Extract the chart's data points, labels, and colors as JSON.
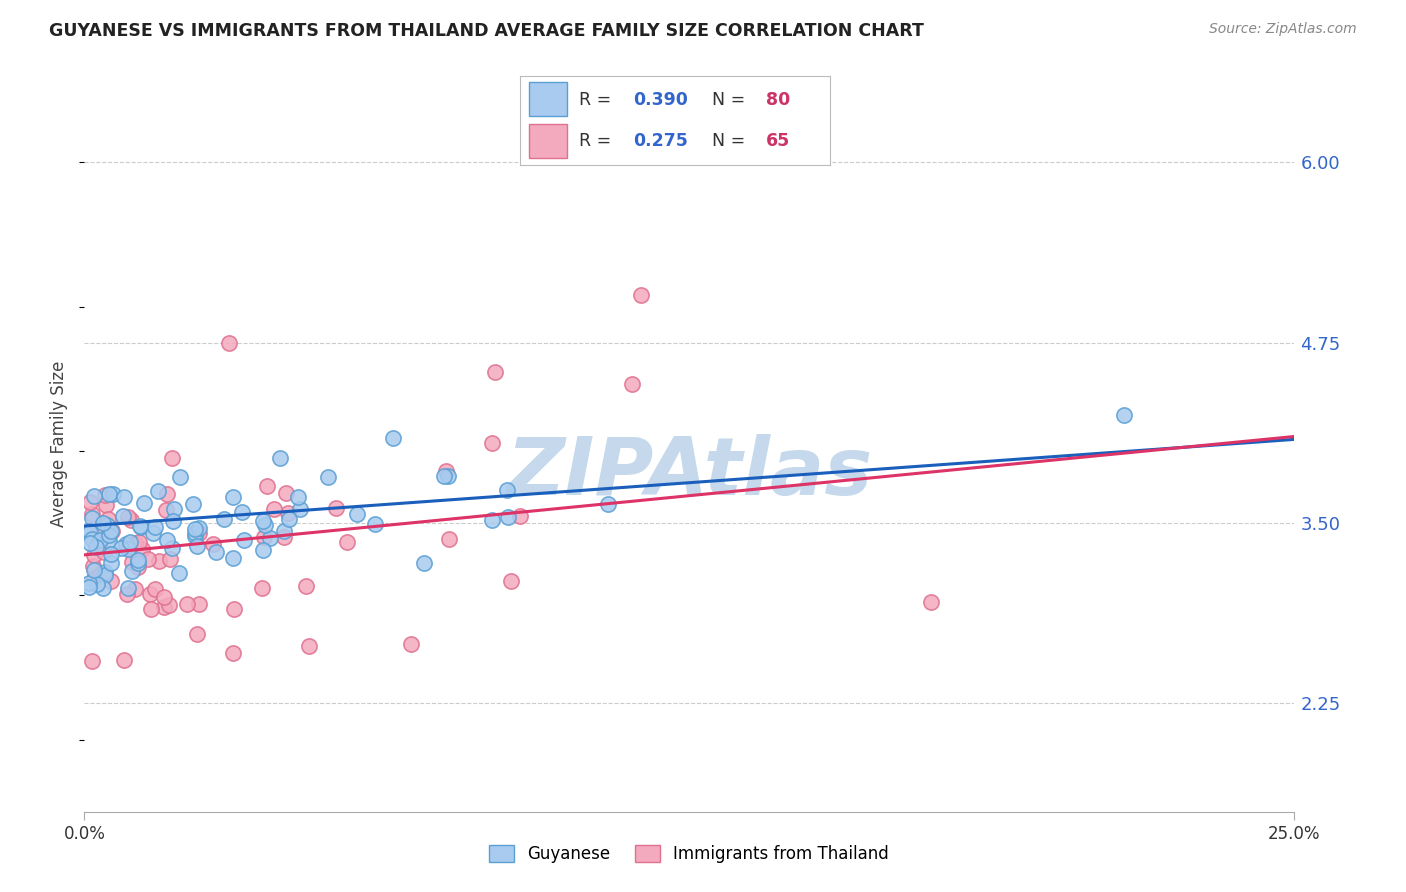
{
  "title": "GUYANESE VS IMMIGRANTS FROM THAILAND AVERAGE FAMILY SIZE CORRELATION CHART",
  "source": "Source: ZipAtlas.com",
  "ylabel": "Average Family Size",
  "xlim": [
    0.0,
    0.25
  ],
  "ylim": [
    1.5,
    6.6
  ],
  "yticks": [
    2.25,
    3.5,
    4.75,
    6.0
  ],
  "xticks_pos": [
    0.0,
    0.25
  ],
  "xticklabels": [
    "0.0%",
    "25.0%"
  ],
  "series1": {
    "label": "Guyanese",
    "R": 0.39,
    "N": 80,
    "color": "#A8CBEF",
    "edge_color": "#5A9FD4"
  },
  "series2": {
    "label": "Immigrants from Thailand",
    "R": 0.275,
    "N": 65,
    "color": "#F4AABE",
    "edge_color": "#E07090"
  },
  "trend1_color": "#1A5FBB",
  "trend2_color": "#DD3366",
  "watermark": "ZIPAtlas",
  "watermark_color": "#C5D8EC",
  "background_color": "#FFFFFF",
  "grid_color": "#CCCCCC",
  "title_color": "#222222",
  "axis_label_color": "#444444",
  "right_tick_color": "#3366CC",
  "legend_R_color": "#3366CC",
  "legend_N_color": "#CC3366",
  "seed1": 42,
  "seed2": 77
}
